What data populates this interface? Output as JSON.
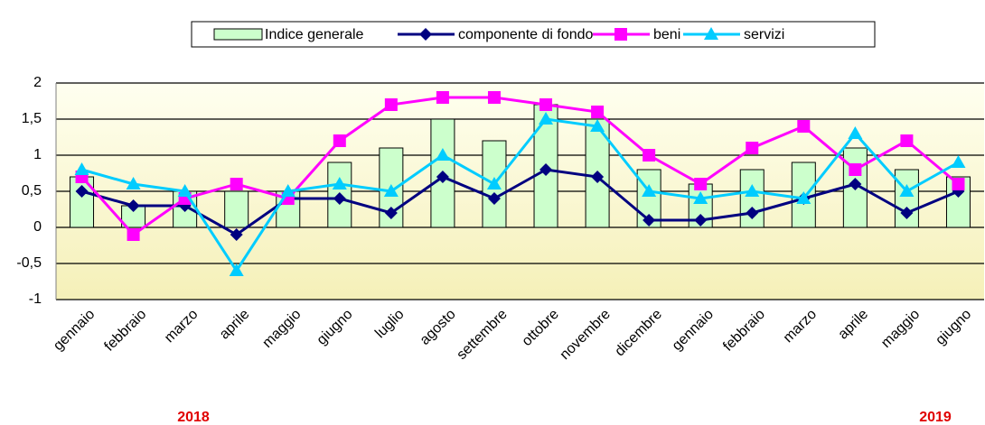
{
  "chart_data": {
    "type": "bar",
    "categories": [
      "gennaio",
      "febbraio",
      "marzo",
      "aprile",
      "maggio",
      "giugno",
      "luglio",
      "agosto",
      "settembre",
      "ottobre",
      "novembre",
      "dicembre",
      "gennaio",
      "febbraio",
      "marzo",
      "aprile",
      "maggio",
      "giugno"
    ],
    "year_labels": [
      "2018",
      "2019"
    ],
    "series": [
      {
        "name": "Indice generale",
        "type": "bar",
        "color": "#ccffcc",
        "values": [
          0.7,
          0.3,
          0.5,
          0.5,
          0.5,
          0.9,
          1.1,
          1.5,
          1.2,
          1.7,
          1.5,
          0.8,
          0.6,
          0.8,
          0.9,
          1.1,
          0.8,
          0.7
        ]
      },
      {
        "name": "componente di fondo",
        "type": "line",
        "marker": "diamond",
        "color": "#000080",
        "values": [
          0.5,
          0.3,
          0.3,
          -0.1,
          0.4,
          0.4,
          0.2,
          0.7,
          0.4,
          0.8,
          0.7,
          0.1,
          0.1,
          0.2,
          0.4,
          0.6,
          0.2,
          0.5
        ]
      },
      {
        "name": "beni",
        "type": "line",
        "marker": "square",
        "color": "#ff00ff",
        "values": [
          0.7,
          -0.1,
          0.4,
          0.6,
          0.4,
          1.2,
          1.7,
          1.8,
          1.8,
          1.7,
          1.6,
          1.0,
          0.6,
          1.1,
          1.4,
          0.8,
          1.2,
          0.6
        ]
      },
      {
        "name": "servizi",
        "type": "line",
        "marker": "triangle",
        "color": "#00ccff",
        "values": [
          0.8,
          0.6,
          0.5,
          -0.6,
          0.5,
          0.6,
          0.5,
          1.0,
          0.6,
          1.5,
          1.4,
          0.5,
          0.4,
          0.5,
          0.4,
          1.3,
          0.5,
          0.9
        ]
      }
    ],
    "ylim": [
      -1,
      2
    ],
    "yticks": [
      -1,
      {
        "value": -0.5,
        "label": "-0,5"
      },
      0,
      {
        "value": 0.5,
        "label": "0,5"
      },
      1,
      {
        "value": 1.5,
        "label": "1,5"
      },
      2
    ],
    "grid": true,
    "legend": "top"
  }
}
